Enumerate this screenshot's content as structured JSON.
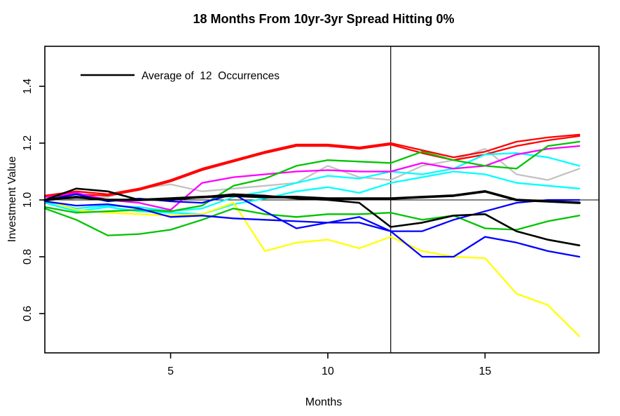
{
  "chart_data": {
    "type": "line",
    "title": "18 Months From 10yr-3yr Spread Hitting 0%",
    "xlabel": "Months",
    "ylabel": "Investment Value",
    "x_ticks": [
      5,
      10,
      15
    ],
    "y_ticks": [
      0.6,
      0.8,
      1.0,
      1.2,
      1.4
    ],
    "x_range_months": [
      1,
      18
    ],
    "ylim": [
      0.46,
      1.54
    ],
    "grid": false,
    "legend": {
      "position": "top-left",
      "label": "Average of  12  Occurrences",
      "line_color": "#000000"
    },
    "reference_lines": {
      "horizontal_y": 1.0,
      "vertical_x_month": 12
    },
    "months": [
      1,
      2,
      3,
      4,
      5,
      6,
      7,
      8,
      9,
      10,
      11,
      12,
      13,
      14,
      15,
      16,
      17,
      18
    ],
    "series": [
      {
        "name": "occurrence-gray",
        "color": "#C3C3C3",
        "width": 2.3,
        "values": [
          1.0,
          1.005,
          1.01,
          1.04,
          1.055,
          1.03,
          1.04,
          1.05,
          1.06,
          1.12,
          1.08,
          1.07,
          1.12,
          1.14,
          1.18,
          1.09,
          1.07,
          1.11
        ]
      },
      {
        "name": "occurrence-red-2",
        "color": "#FF0000",
        "width": 2.3,
        "values": [
          1.01,
          1.02,
          1.015,
          1.035,
          1.065,
          1.105,
          1.135,
          1.165,
          1.19,
          1.19,
          1.18,
          1.195,
          1.165,
          1.14,
          1.16,
          1.19,
          1.21,
          1.225
        ]
      },
      {
        "name": "occurrence-cyan-2",
        "color": "#00FFFF",
        "width": 2.3,
        "values": [
          0.99,
          0.96,
          0.975,
          0.96,
          0.955,
          0.95,
          0.985,
          1.005,
          1.03,
          1.045,
          1.025,
          1.06,
          1.08,
          1.1,
          1.09,
          1.06,
          1.05,
          1.04
        ]
      },
      {
        "name": "occurrence-cyan-1",
        "color": "#00FFFF",
        "width": 2.3,
        "values": [
          0.995,
          0.97,
          0.98,
          0.975,
          0.96,
          0.97,
          1.01,
          1.03,
          1.06,
          1.085,
          1.075,
          1.1,
          1.09,
          1.11,
          1.16,
          1.165,
          1.15,
          1.12
        ]
      },
      {
        "name": "occurrence-magenta",
        "color": "#FF00FF",
        "width": 2.3,
        "values": [
          1.01,
          1.025,
          1.0,
          0.99,
          0.965,
          1.06,
          1.08,
          1.09,
          1.1,
          1.105,
          1.1,
          1.1,
          1.13,
          1.11,
          1.12,
          1.16,
          1.18,
          1.19
        ]
      },
      {
        "name": "occurrence-yellow",
        "color": "#FFFF00",
        "width": 2.3,
        "values": [
          1.0,
          0.965,
          0.955,
          0.95,
          0.945,
          0.95,
          0.99,
          0.82,
          0.85,
          0.86,
          0.83,
          0.87,
          0.82,
          0.8,
          0.795,
          0.67,
          0.63,
          0.52
        ]
      },
      {
        "name": "occurrence-green-2",
        "color": "#00C400",
        "width": 2.3,
        "values": [
          0.97,
          0.93,
          0.875,
          0.88,
          0.895,
          0.93,
          0.97,
          0.95,
          0.94,
          0.95,
          0.95,
          0.955,
          0.93,
          0.945,
          0.9,
          0.895,
          0.925,
          0.945
        ]
      },
      {
        "name": "occurrence-green-1",
        "color": "#00C400",
        "width": 2.3,
        "values": [
          0.975,
          0.955,
          0.96,
          0.965,
          0.96,
          0.98,
          1.05,
          1.075,
          1.12,
          1.14,
          1.135,
          1.13,
          1.17,
          1.14,
          1.12,
          1.11,
          1.19,
          1.205
        ]
      },
      {
        "name": "occurrence-blue-2",
        "color": "#0000FF",
        "width": 2.3,
        "values": [
          0.995,
          0.98,
          0.985,
          0.97,
          0.94,
          0.945,
          0.935,
          0.93,
          0.925,
          0.92,
          0.92,
          0.89,
          0.8,
          0.8,
          0.87,
          0.85,
          0.82,
          0.8
        ]
      },
      {
        "name": "occurrence-blue-1",
        "color": "#0000FF",
        "width": 2.3,
        "values": [
          1.0,
          1.02,
          0.995,
          1.005,
          0.995,
          0.99,
          1.02,
          0.96,
          0.9,
          0.92,
          0.94,
          0.89,
          0.89,
          0.93,
          0.96,
          0.99,
          1.0,
          1.0
        ]
      },
      {
        "name": "occurrence-red-1",
        "color": "#FF0000",
        "width": 2.3,
        "values": [
          1.015,
          1.03,
          1.02,
          1.04,
          1.07,
          1.11,
          1.14,
          1.17,
          1.195,
          1.195,
          1.185,
          1.2,
          1.175,
          1.15,
          1.17,
          1.205,
          1.22,
          1.23
        ]
      },
      {
        "name": "occurrence-black",
        "color": "#000000",
        "width": 2.6,
        "values": [
          1.0,
          1.04,
          1.03,
          1.0,
          1.0,
          1.01,
          1.02,
          1.015,
          1.005,
          1.0,
          0.99,
          0.905,
          0.92,
          0.945,
          0.95,
          0.89,
          0.86,
          0.84
        ]
      },
      {
        "name": "average",
        "color": "#000000",
        "width": 3.6,
        "values": [
          1.0,
          1.01,
          1.0,
          1.0,
          1.005,
          1.01,
          1.015,
          1.01,
          1.01,
          1.005,
          1.005,
          1.005,
          1.01,
          1.015,
          1.03,
          1.0,
          0.995,
          0.99
        ]
      }
    ]
  }
}
